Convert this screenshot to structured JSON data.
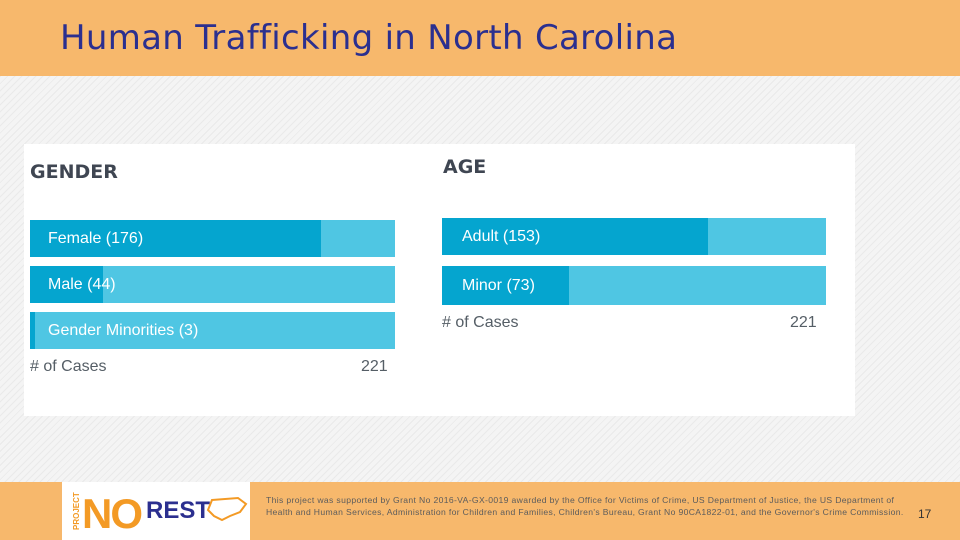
{
  "slide": {
    "title": "Human Trafficking in North Carolina",
    "credit": "This project was supported by Grant No 2016-VA-GX-0019 awarded by the Office for Victims of Crime, US Department of Justice, the US Department of Health and Human Services, Administration for Children and Families, Children's Bureau, Grant No 90CA1822-01, and the Governor's Crime Commission.",
    "page_number": "17",
    "logo": {
      "project": "PROJECT",
      "no": "NO",
      "rest": "REST"
    }
  },
  "colors": {
    "header": "#f7b86c",
    "title": "#2b2f8f",
    "bar_fill": "#05a5cf",
    "bar_track": "#4fc6e3"
  },
  "chart_data": [
    {
      "type": "bar",
      "title": "GENDER",
      "categories": [
        "Female (176)",
        "Male (44)",
        "Gender Minorities (3)"
      ],
      "values": [
        176,
        44,
        3
      ],
      "xlabel": "# of Cases",
      "xmax_label": "221",
      "xlim": [
        0,
        221
      ]
    },
    {
      "type": "bar",
      "title": "AGE",
      "categories": [
        "Adult (153)",
        "Minor (73)"
      ],
      "values": [
        153,
        73
      ],
      "xlabel": "# of Cases",
      "xmax_label": "221",
      "xlim": [
        0,
        221
      ]
    }
  ]
}
